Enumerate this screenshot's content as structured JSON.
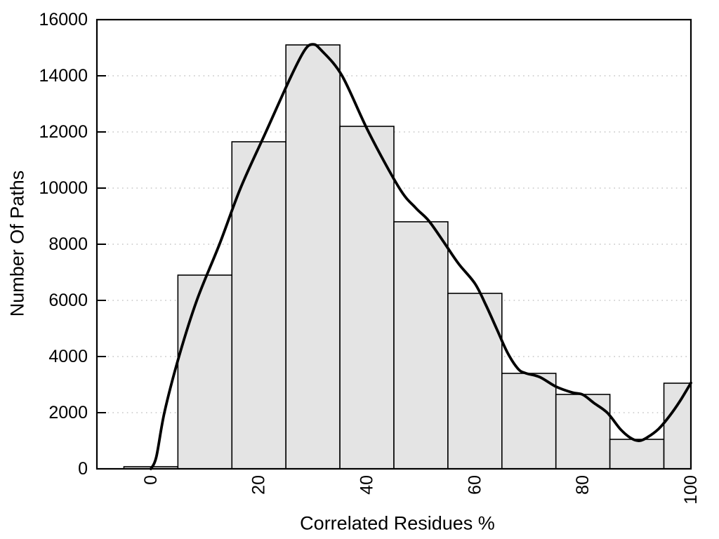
{
  "chart_data": {
    "type": "bar",
    "subtype": "histogram-with-smoothed-density-curve",
    "title": "",
    "xlabel": "Correlated Residues %",
    "ylabel": "Number Of Paths",
    "xlim": [
      -10,
      100
    ],
    "ylim": [
      0,
      16000
    ],
    "x_tick_values": [
      0,
      20,
      40,
      60,
      80,
      100
    ],
    "x_tick_labels": [
      "0",
      "20",
      "40",
      "60",
      "80",
      "100"
    ],
    "x_tick_label_rotation_deg": -90,
    "y_tick_values": [
      0,
      2000,
      4000,
      6000,
      8000,
      10000,
      12000,
      14000,
      16000
    ],
    "y_tick_labels": [
      "0",
      "2000",
      "4000",
      "6000",
      "8000",
      "10000",
      "12000",
      "14000",
      "16000"
    ],
    "grid": {
      "horizontal": true,
      "vertical": false,
      "style": "dotted",
      "at": [
        2000,
        4000,
        6000,
        8000,
        10000,
        12000,
        14000
      ]
    },
    "legend": "none",
    "bars": {
      "bin_edges": [
        -5,
        5,
        15,
        25,
        35,
        45,
        55,
        65,
        75,
        85,
        95,
        100
      ],
      "counts": [
        75,
        6900,
        11650,
        15100,
        12200,
        8800,
        6250,
        3400,
        2650,
        1050,
        3050
      ]
    },
    "density_curve": {
      "points": [
        [
          0,
          0
        ],
        [
          1,
          420
        ],
        [
          2.5,
          2000
        ],
        [
          5.2,
          4000
        ],
        [
          8.5,
          6000
        ],
        [
          12.7,
          8000
        ],
        [
          16.6,
          10000
        ],
        [
          21.3,
          12000
        ],
        [
          26,
          14000
        ],
        [
          28.5,
          14920
        ],
        [
          30,
          15120
        ],
        [
          31.5,
          14920
        ],
        [
          35.4,
          14000
        ],
        [
          40.3,
          12000
        ],
        [
          46,
          10000
        ],
        [
          49,
          9300
        ],
        [
          51.5,
          8825
        ],
        [
          54.5,
          8000
        ],
        [
          57,
          7300
        ],
        [
          60,
          6600
        ],
        [
          62,
          5850
        ],
        [
          64,
          5000
        ],
        [
          66,
          4150
        ],
        [
          68,
          3560
        ],
        [
          69.5,
          3400
        ],
        [
          72,
          3270
        ],
        [
          75,
          2930
        ],
        [
          78,
          2720
        ],
        [
          80,
          2640
        ],
        [
          82,
          2350
        ],
        [
          84.5,
          2000
        ],
        [
          87,
          1400
        ],
        [
          89,
          1080
        ],
        [
          90.5,
          1000
        ],
        [
          92,
          1130
        ],
        [
          94,
          1420
        ],
        [
          96,
          1870
        ],
        [
          98,
          2420
        ],
        [
          100,
          3060
        ]
      ]
    },
    "colors": {
      "background": "#ffffff",
      "bar_fill": "#e4e4e4",
      "bar_stroke": "#000000",
      "curve": "#000000",
      "frame": "#000000",
      "tick": "#000000",
      "grid": "#c6c6c6",
      "text": "#000000"
    }
  }
}
